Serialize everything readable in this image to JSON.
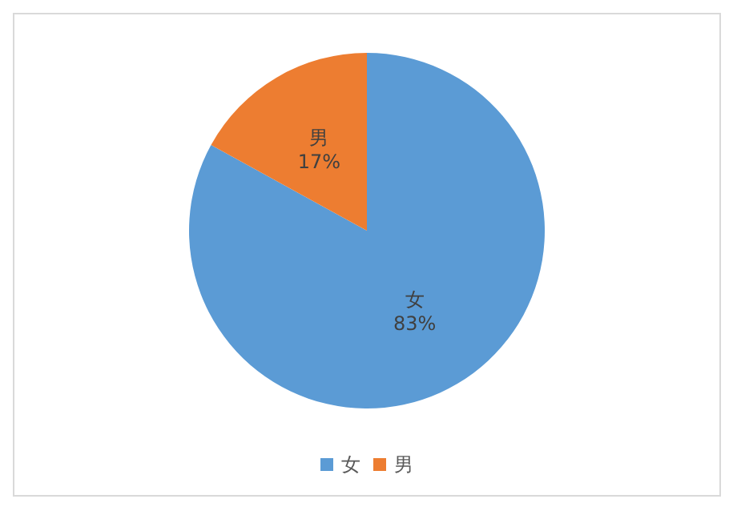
{
  "chart_data": {
    "type": "pie",
    "categories": [
      "女",
      "男"
    ],
    "values": [
      83,
      17
    ],
    "value_labels": [
      "83%",
      "17%"
    ],
    "colors": [
      "#5b9bd5",
      "#ed7d31"
    ],
    "legend": "bottom"
  }
}
